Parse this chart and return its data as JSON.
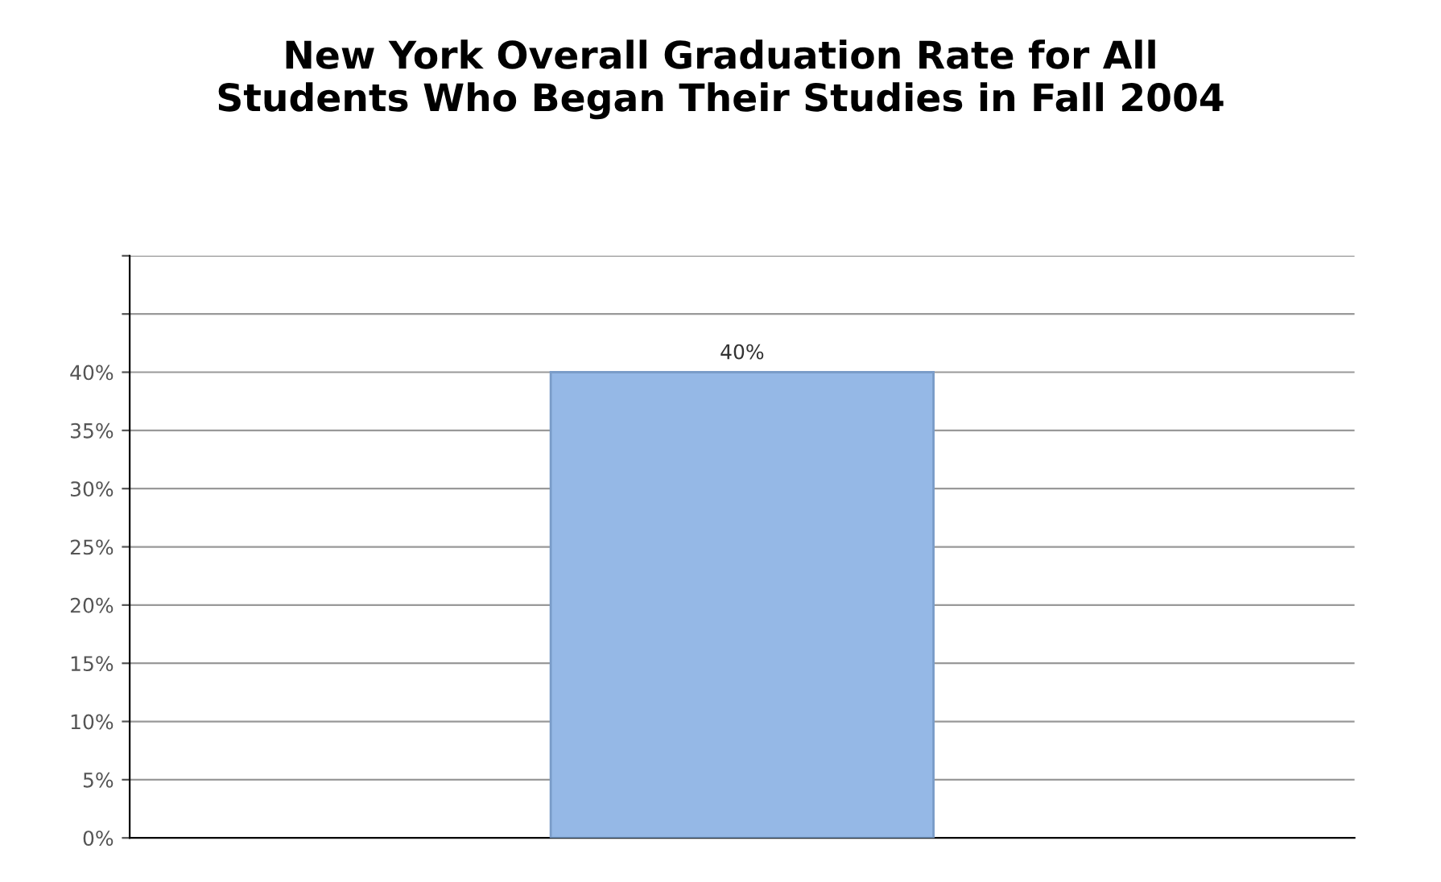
{
  "chart_data": {
    "type": "bar",
    "title": "New York Overall Graduation Rate for All\nStudents Who Began Their Studies in Fall 2004",
    "categories": [
      null
    ],
    "values": [
      40
    ],
    "color": "#95b8e6",
    "value_labels": [
      "40%"
    ],
    "ylim": [
      0,
      50
    ],
    "yticks": [
      {
        "value": 0,
        "label": "0%"
      },
      {
        "value": 5,
        "label": "5%"
      },
      {
        "value": 10,
        "label": "10%"
      },
      {
        "value": 15,
        "label": "15%"
      },
      {
        "value": 20,
        "label": "20%"
      },
      {
        "value": 25,
        "label": "25%"
      },
      {
        "value": 30,
        "label": "30%"
      },
      {
        "value": 35,
        "label": "35%"
      },
      {
        "value": 40,
        "label": "40%"
      },
      {
        "value": 45,
        "label": null
      },
      {
        "value": 50,
        "label": null
      }
    ],
    "grid": "y"
  }
}
